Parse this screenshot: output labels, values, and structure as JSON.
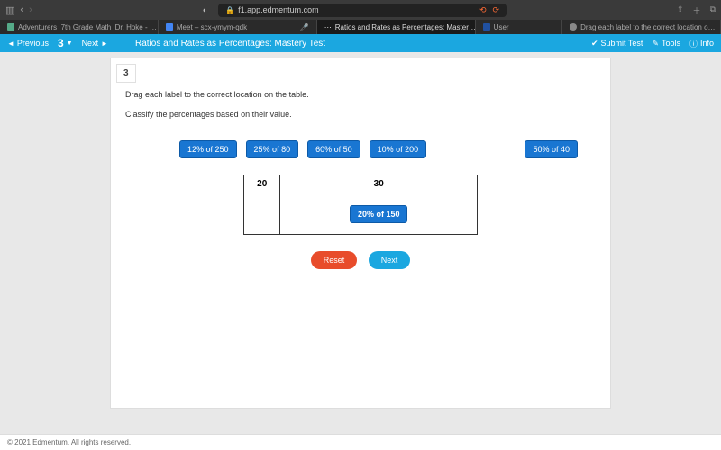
{
  "browser": {
    "url": "f1.app.edmentum.com",
    "tabs": [
      {
        "label": "Adventurers_7th Grade Math_Dr. Hoke - …",
        "fav": "a"
      },
      {
        "label": "Meet – scx-ymym-qdk",
        "fav": "g"
      },
      {
        "label": "Ratios and Rates as Percentages: Master…",
        "fav": "",
        "active": true
      },
      {
        "label": "User",
        "fav": "n"
      },
      {
        "label": "Drag each label to the correct location o…",
        "fav": "c"
      }
    ]
  },
  "appbar": {
    "previous": "Previous",
    "counter": "3",
    "next": "Next",
    "title": "Ratios and Rates as Percentages: Mastery Test",
    "submit": "Submit Test",
    "tools": "Tools",
    "info": "Info"
  },
  "question": {
    "number": "3",
    "instruction": "Drag each label to the correct location on the table.",
    "sub_instruction": "Classify the percentages based on their value.",
    "labels": [
      "12% of 250",
      "25% of 80",
      "60% of 50",
      "10% of 200",
      "50% of 40"
    ],
    "table": {
      "headers": [
        "20",
        "30"
      ],
      "placed_col2": "20% of 150"
    },
    "reset": "Reset",
    "next": "Next"
  },
  "footer": "© 2021 Edmentum. All rights reserved.",
  "colors": {
    "appbar_bg": "#1ba7e0",
    "label_bg": "#1976d2",
    "reset_bg": "#e84c2b",
    "page_bg": "#e8e8e8"
  }
}
